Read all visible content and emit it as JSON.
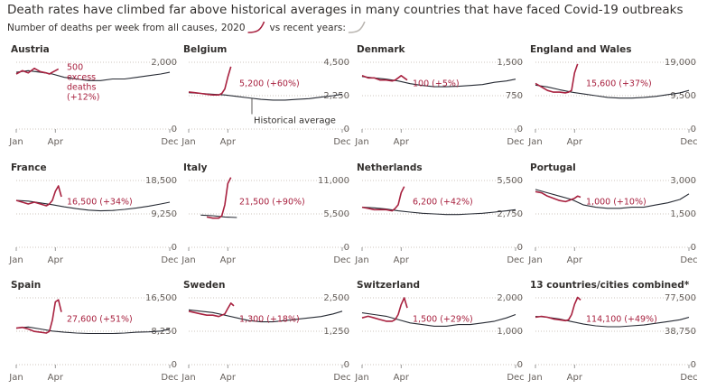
{
  "chart_data": {
    "type": "line",
    "title": "Death rates have climbed far above historical averages in many countries that have faced Covid-19 outbreaks",
    "subtitle": "Number of deaths per week from all causes,",
    "legend": [
      {
        "name": "2020",
        "color": "#a8213f"
      },
      {
        "name": "vs recent years:",
        "color": "#b9b5b0"
      }
    ],
    "color_2020": "#a8213f",
    "color_average": "#262a33",
    "xlim": [
      1,
      52
    ],
    "xticks": [
      {
        "value": 1,
        "label": "Jan"
      },
      {
        "value": 14,
        "label": "Apr"
      },
      {
        "value": 52,
        "label": "Dec"
      }
    ],
    "x_2020": [
      1,
      3,
      5,
      7,
      9,
      11,
      12,
      13,
      14,
      15,
      16
    ],
    "x_average": [
      1,
      5,
      9,
      13,
      17,
      21,
      25,
      29,
      33,
      37,
      41,
      45,
      49,
      52
    ],
    "panels": [
      {
        "title": "Austria",
        "ylim": [
          0,
          2000
        ],
        "yticks": [
          0,
          {
            "value": 2000,
            "label": "2,000"
          }
        ],
        "annotation": [
          "500",
          "excess",
          "deaths",
          "(+12%)"
        ],
        "values_2020": [
          1650,
          1750,
          1680,
          1820,
          1720,
          1680,
          1650,
          1700,
          1750,
          1800,
          null
        ],
        "values_average": [
          1700,
          1750,
          1700,
          1650,
          1550,
          1500,
          1450,
          1450,
          1500,
          1500,
          1550,
          1600,
          1650,
          1700
        ]
      },
      {
        "title": "Belgium",
        "ylim": [
          0,
          4500
        ],
        "yticks": [
          0,
          {
            "value": 2250,
            "label": "2,250"
          },
          {
            "value": 4500,
            "label": "4,500"
          }
        ],
        "annotation": [
          "5,200 (+60%)"
        ],
        "label_average": "Historical average",
        "values_2020": [
          2500,
          2450,
          2400,
          2350,
          2300,
          2300,
          2400,
          2700,
          3500,
          4200,
          null
        ],
        "values_average": [
          2450,
          2400,
          2350,
          2300,
          2200,
          2100,
          2000,
          1950,
          1950,
          2000,
          2050,
          2150,
          2250,
          2350
        ]
      },
      {
        "title": "Denmark",
        "ylim": [
          0,
          1500
        ],
        "yticks": [
          0,
          750,
          {
            "value": 1500,
            "label": "1,500"
          }
        ],
        "annotation": [
          "100 (+5%)"
        ],
        "values_2020": [
          1200,
          1150,
          1150,
          1100,
          1100,
          1080,
          1100,
          1150,
          1200,
          1150,
          1100
        ],
        "values_average": [
          1180,
          1150,
          1120,
          1080,
          1020,
          980,
          950,
          950,
          960,
          980,
          1000,
          1050,
          1080,
          1120
        ]
      },
      {
        "title": "England and Wales",
        "ylim": [
          0,
          19000
        ],
        "yticks": [
          0,
          {
            "value": 9500,
            "label": "9,500"
          },
          {
            "value": 19000,
            "label": "19,000"
          }
        ],
        "annotation": [
          "15,600 (+37%)"
        ],
        "values_2020": [
          13000,
          12000,
          11000,
          10500,
          10500,
          10300,
          10500,
          11000,
          16000,
          18500,
          null
        ],
        "values_average": [
          12500,
          12000,
          11200,
          10500,
          10000,
          9500,
          9000,
          8800,
          8800,
          9000,
          9300,
          9800,
          10300,
          11000
        ]
      },
      {
        "title": "France",
        "ylim": [
          0,
          18500
        ],
        "yticks": [
          0,
          {
            "value": 9250,
            "label": "9,250"
          },
          {
            "value": 18500,
            "label": "18,500"
          }
        ],
        "annotation": [
          "16,500 (+34%)"
        ],
        "values_2020": [
          13000,
          12500,
          12000,
          12500,
          12000,
          11500,
          12000,
          13000,
          15500,
          17000,
          14000
        ],
        "values_average": [
          13000,
          12800,
          12300,
          11800,
          11200,
          10700,
          10300,
          10100,
          10200,
          10500,
          10900,
          11400,
          12000,
          12500
        ]
      },
      {
        "title": "Italy",
        "ylim": [
          0,
          11000
        ],
        "yticks": [
          0,
          {
            "value": 5500,
            "label": "5,500"
          },
          {
            "value": 11000,
            "label": "11,000"
          }
        ],
        "annotation": [
          "21,500 (+90%)"
        ],
        "values_2020": [
          null,
          null,
          null,
          5000,
          4800,
          4800,
          5200,
          7000,
          10500,
          11500,
          null
        ],
        "values_average": [
          null,
          5300,
          5200,
          5000,
          4900,
          null,
          null,
          null,
          null,
          null,
          null,
          null,
          null,
          null
        ]
      },
      {
        "title": "Netherlands",
        "ylim": [
          0,
          5500
        ],
        "yticks": [
          0,
          {
            "value": 2750,
            "label": "2,750"
          },
          {
            "value": 5500,
            "label": "5,500"
          }
        ],
        "annotation": [
          "6,200 (+42%)"
        ],
        "values_2020": [
          3300,
          3200,
          3100,
          3100,
          3100,
          3000,
          3200,
          3500,
          4500,
          5000,
          null
        ],
        "values_average": [
          3300,
          3250,
          3150,
          3000,
          2900,
          2800,
          2750,
          2700,
          2700,
          2750,
          2800,
          2900,
          3000,
          3100
        ]
      },
      {
        "title": "Portugal",
        "ylim": [
          0,
          3000
        ],
        "yticks": [
          0,
          {
            "value": 1500,
            "label": "1,500"
          },
          {
            "value": 3000,
            "label": "3,000"
          }
        ],
        "annotation": [
          "1,000 (+10%)"
        ],
        "values_2020": [
          2500,
          2450,
          2300,
          2200,
          2100,
          2050,
          2100,
          2150,
          2200,
          2300,
          2250
        ],
        "values_average": [
          2600,
          2450,
          2300,
          2150,
          1900,
          1800,
          1750,
          1750,
          1800,
          1800,
          1900,
          2000,
          2150,
          2400
        ]
      },
      {
        "title": "Spain",
        "ylim": [
          0,
          16500
        ],
        "yticks": [
          0,
          {
            "value": 8250,
            "label": "8,250"
          },
          {
            "value": 16500,
            "label": "16,500"
          }
        ],
        "annotation": [
          "27,600 (+51%)"
        ],
        "values_2020": [
          9000,
          9200,
          8800,
          8200,
          8000,
          7800,
          8200,
          11000,
          15500,
          16000,
          13000
        ],
        "values_average": [
          9000,
          9300,
          8800,
          8300,
          8000,
          7800,
          7700,
          7700,
          7700,
          7800,
          8000,
          8100,
          8300,
          8800
        ]
      },
      {
        "title": "Sweden",
        "ylim": [
          0,
          2500
        ],
        "yticks": [
          0,
          {
            "value": 1250,
            "label": "1,250"
          },
          {
            "value": 2500,
            "label": "2,500"
          }
        ],
        "annotation": [
          "1,300 (+18%)"
        ],
        "values_2020": [
          2000,
          1950,
          1900,
          1850,
          1850,
          1800,
          1850,
          1900,
          2100,
          2300,
          2200
        ],
        "values_average": [
          2050,
          2000,
          1950,
          1850,
          1750,
          1650,
          1600,
          1600,
          1650,
          1700,
          1750,
          1800,
          1900,
          2000
        ]
      },
      {
        "title": "Switzerland",
        "ylim": [
          0,
          2000
        ],
        "yticks": [
          0,
          {
            "value": 1000,
            "label": "1,000"
          },
          {
            "value": 2000,
            "label": "2,000"
          }
        ],
        "annotation": [
          "1,500 (+29%)"
        ],
        "values_2020": [
          1400,
          1450,
          1400,
          1350,
          1300,
          1300,
          1350,
          1500,
          1800,
          2000,
          1700
        ],
        "values_average": [
          1550,
          1500,
          1450,
          1350,
          1250,
          1200,
          1150,
          1150,
          1200,
          1200,
          1250,
          1300,
          1400,
          1500
        ]
      },
      {
        "title": "13 countries/cities combined*",
        "ylim": [
          0,
          77500
        ],
        "yticks": [
          0,
          {
            "value": 38750,
            "label": "38,750"
          },
          {
            "value": 77500,
            "label": "77,500"
          }
        ],
        "annotation": [
          "114,100 (+49%)"
        ],
        "values_2020": [
          55000,
          56000,
          55000,
          53000,
          52000,
          51000,
          52000,
          58000,
          70000,
          78000,
          75000
        ],
        "values_average": [
          56000,
          55000,
          53000,
          50000,
          47000,
          45000,
          44000,
          44000,
          45000,
          46000,
          48000,
          50000,
          52000,
          55000
        ]
      }
    ]
  }
}
